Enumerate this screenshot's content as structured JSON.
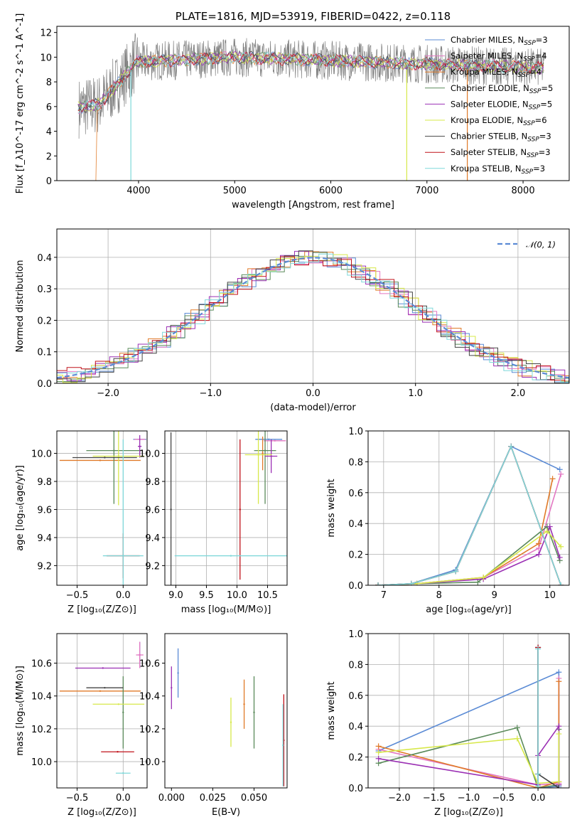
{
  "chart_data": [
    {
      "type": "line",
      "title": "PLATE=1816, MJD=53919, FIBERID=0422, z=0.118",
      "xlabel": "wavelength [Angstrom, rest frame]",
      "ylabel": "Flux [f_λ10^-17 erg cm^-2 s^-1 A^-1]",
      "xlim": [
        3150,
        8480
      ],
      "ylim": [
        0,
        12.5
      ],
      "xticks": [
        4000,
        5000,
        6000,
        7000,
        8000
      ],
      "yticks": [
        0,
        2,
        4,
        6,
        8,
        10,
        12
      ],
      "legend_position": "upper-right",
      "data_spectrum": {
        "x_range": [
          3380,
          8220
        ],
        "level": 10.0,
        "color": "#808080"
      },
      "series": [
        {
          "name": "Chabrier MILES, N_SSP=3",
          "color": "#5b8bd5"
        },
        {
          "name": "Salpeter MILES, N_SSP=4",
          "color": "#e377c2"
        },
        {
          "name": "Kroupa MILES, N_SSP=4",
          "color": "#e07a28"
        },
        {
          "name": "Chabrier ELODIE, N_SSP=5",
          "color": "#5a8a5a"
        },
        {
          "name": "Salpeter ELODIE, N_SSP=5",
          "color": "#9b30b4"
        },
        {
          "name": "Kroupa ELODIE, N_SSP=6",
          "color": "#d7e84a"
        },
        {
          "name": "Chabrier STELIB, N_SSP=3",
          "color": "#444444"
        },
        {
          "name": "Salpeter STELIB, N_SSP=3",
          "color": "#c0121a"
        },
        {
          "name": "Kroupa STELIB, N_SSP=3",
          "color": "#7fd8da"
        }
      ]
    },
    {
      "type": "histogram",
      "xlabel": "(data-model)/error",
      "ylabel": "Normed distribution",
      "xlim": [
        -2.5,
        2.5
      ],
      "ylim": [
        0,
        0.49
      ],
      "xticks": [
        -2,
        -1,
        0,
        1,
        2
      ],
      "yticks": [
        0.0,
        0.1,
        0.2,
        0.3,
        0.4
      ],
      "grid": true,
      "legend_position": "upper-right",
      "reference_curve": {
        "name": "𝒩(0, 1)",
        "color": "#5b8bd5"
      }
    },
    {
      "type": "errorbar",
      "xlabel": "Z [log10(Z/Z⊙)]",
      "ylabel": "age  [log10(age/yr)]",
      "xlim": [
        -0.72,
        0.26
      ],
      "ylim": [
        9.06,
        10.16
      ],
      "xticks": [
        -0.5,
        0.0
      ],
      "yticks": [
        9.2,
        9.4,
        9.6,
        9.8,
        10.0
      ],
      "grid": true,
      "points": [
        {
          "color": "#5b8bd5",
          "x": 0.18,
          "x_err": 0.07,
          "y": 10.1,
          "y_err": 0.0
        },
        {
          "color": "#e377c2",
          "x": 0.18,
          "x_err": 0.06,
          "y": 10.1,
          "y_err": 0.0
        },
        {
          "color": "#e07a28",
          "x": -0.25,
          "x_err": 0.44,
          "y": 9.95,
          "y_err": 0.0
        },
        {
          "color": "#5a8a5a",
          "x": -0.1,
          "x_err": 0.3,
          "y": 10.02,
          "y_err": 0.38
        },
        {
          "color": "#9b30b4",
          "x": 0.18,
          "x_err": 0.02,
          "y": 10.05,
          "y_err": 0.08
        },
        {
          "color": "#d7e84a",
          "x": -0.05,
          "x_err": 0.28,
          "y": 9.98,
          "y_err": 0.35
        },
        {
          "color": "#444444",
          "x": -0.2,
          "x_err": 0.35,
          "y": 9.97,
          "y_err": 0.0
        },
        {
          "color": "#c0121a",
          "x": 0.0,
          "x_err": 0.18,
          "y": 9.27,
          "y_err": 0.16
        },
        {
          "color": "#7fd8da",
          "x": 0.0,
          "x_err": 0.22,
          "y": 9.27,
          "y_err": 0.83
        }
      ]
    },
    {
      "type": "errorbar",
      "xlabel": "mass [log10(M/M⊙)]",
      "ylabel": "",
      "xlim": [
        8.82,
        10.82
      ],
      "ylim": [
        9.06,
        10.16
      ],
      "xticks": [
        9.0,
        9.5,
        10.0,
        10.5
      ],
      "yticks": [
        9.2,
        9.4,
        9.6,
        9.8,
        10.0
      ],
      "grid": true,
      "points": [
        {
          "color": "#5b8bd5",
          "x": 10.52,
          "x_err": 0.22,
          "y": 10.1,
          "y_err": 0.0
        },
        {
          "color": "#e377c2",
          "x": 10.62,
          "x_err": 0.18,
          "y": 10.09,
          "y_err": 0.0
        },
        {
          "color": "#e07a28",
          "x": 10.42,
          "x_err": 0.0,
          "y": 10.0,
          "y_err": 0.12
        },
        {
          "color": "#5a8a5a",
          "x": 10.46,
          "x_err": 0.18,
          "y": 10.02,
          "y_err": 0.38
        },
        {
          "color": "#9b30b4",
          "x": 10.56,
          "x_err": 0.1,
          "y": 9.98,
          "y_err": 0.12
        },
        {
          "color": "#d7e84a",
          "x": 10.35,
          "x_err": 0.22,
          "y": 9.99,
          "y_err": 0.35
        },
        {
          "color": "#444444",
          "x": 8.92,
          "x_err": 0.0,
          "y": 9.6,
          "y_err": 0.55
        },
        {
          "color": "#c0121a",
          "x": 10.05,
          "x_err": 0.0,
          "y": 9.6,
          "y_err": 0.5
        },
        {
          "color": "#7fd8da",
          "x": 9.9,
          "x_err": 0.92,
          "y": 9.27,
          "y_err": 0.0
        }
      ]
    },
    {
      "type": "line",
      "xlabel": "age  [log10(age/yr)]",
      "ylabel": "mass weight",
      "xlim": [
        6.72,
        10.35
      ],
      "ylim": [
        0,
        1
      ],
      "xticks": [
        7,
        8,
        9,
        10
      ],
      "yticks": [
        0.0,
        0.2,
        0.4,
        0.6,
        0.8,
        1.0
      ],
      "grid": true,
      "series": [
        {
          "color": "#5b8bd5",
          "x": [
            6.9,
            7.5,
            8.3,
            9.3,
            10.18
          ],
          "y": [
            0.0,
            0.01,
            0.1,
            0.9,
            0.75
          ]
        },
        {
          "color": "#e377c2",
          "x": [
            6.9,
            7.6,
            8.8,
            9.8,
            10.2
          ],
          "y": [
            0.0,
            0.01,
            0.05,
            0.24,
            0.72
          ]
        },
        {
          "color": "#e07a28",
          "x": [
            6.9,
            7.6,
            8.8,
            9.8,
            10.05
          ],
          "y": [
            0.0,
            0.01,
            0.05,
            0.27,
            0.69
          ]
        },
        {
          "color": "#5a8a5a",
          "x": [
            6.9,
            7.6,
            8.7,
            9.95,
            10.18
          ],
          "y": [
            0.0,
            0.01,
            0.02,
            0.38,
            0.16
          ]
        },
        {
          "color": "#9b30b4",
          "x": [
            6.9,
            7.6,
            8.8,
            9.8,
            10.0,
            10.18
          ],
          "y": [
            0.0,
            0.01,
            0.04,
            0.2,
            0.38,
            0.18
          ]
        },
        {
          "color": "#d7e84a",
          "x": [
            6.9,
            7.6,
            8.8,
            9.95,
            10.2
          ],
          "y": [
            0.0,
            0.01,
            0.05,
            0.35,
            0.25
          ]
        },
        {
          "color": "#444444",
          "x": [
            6.9,
            7.5,
            8.3,
            9.3,
            10.2
          ],
          "y": [
            0.0,
            0.01,
            0.09,
            0.9,
            0.0
          ]
        },
        {
          "color": "#c0121a",
          "x": [
            6.9,
            7.5,
            8.3,
            9.3,
            10.2
          ],
          "y": [
            0.0,
            0.01,
            0.09,
            0.9,
            0.0
          ]
        },
        {
          "color": "#7fd8da",
          "x": [
            6.9,
            7.5,
            8.3,
            9.3,
            10.2
          ],
          "y": [
            0.0,
            0.01,
            0.09,
            0.9,
            0.0
          ]
        }
      ]
    },
    {
      "type": "errorbar",
      "xlabel": "Z [log10(Z/Z⊙)]",
      "ylabel": "mass [log10(M/M⊙)]",
      "xlim": [
        -0.72,
        0.26
      ],
      "ylim": [
        9.84,
        10.78
      ],
      "xticks": [
        -0.5,
        0.0
      ],
      "yticks": [
        10.0,
        10.2,
        10.4,
        10.6
      ],
      "grid": true,
      "points": [
        {
          "color": "#5b8bd5",
          "x": 0.18,
          "x_err": 0.0,
          "y": 10.65,
          "y_err": 0.08
        },
        {
          "color": "#e377c2",
          "x": 0.18,
          "x_err": 0.04,
          "y": 10.65,
          "y_err": 0.08
        },
        {
          "color": "#e07a28",
          "x": -0.25,
          "x_err": 0.44,
          "y": 10.43,
          "y_err": 0.0
        },
        {
          "color": "#5a8a5a",
          "x": 0.0,
          "x_err": 0.0,
          "y": 10.3,
          "y_err": 0.22
        },
        {
          "color": "#9b30b4",
          "x": -0.22,
          "x_err": 0.3,
          "y": 10.57,
          "y_err": 0.0
        },
        {
          "color": "#d7e84a",
          "x": -0.05,
          "x_err": 0.28,
          "y": 10.35,
          "y_err": 0.0
        },
        {
          "color": "#444444",
          "x": -0.2,
          "x_err": 0.2,
          "y": 10.45,
          "y_err": 0.0
        },
        {
          "color": "#c0121a",
          "x": -0.06,
          "x_err": 0.18,
          "y": 10.06,
          "y_err": 0.0
        },
        {
          "color": "#7fd8da",
          "x": 0.0,
          "x_err": 0.08,
          "y": 9.93,
          "y_err": 0.0
        }
      ]
    },
    {
      "type": "errorbar",
      "xlabel": "E(B-V)",
      "ylabel": "",
      "xlim": [
        -0.004,
        0.07
      ],
      "ylim": [
        9.84,
        10.78
      ],
      "xticks": [
        0.0,
        0.025,
        0.05
      ],
      "yticks": [
        10.0,
        10.2,
        10.4,
        10.6
      ],
      "grid": false,
      "points": [
        {
          "color": "#9b30b4",
          "x": 0.0,
          "y": 10.45,
          "y_err": 0.13
        },
        {
          "color": "#5b8bd5",
          "x": 0.004,
          "y": 10.54,
          "y_err": 0.15
        },
        {
          "color": "#d7e84a",
          "x": 0.036,
          "y": 10.24,
          "y_err": 0.15
        },
        {
          "color": "#e07a28",
          "x": 0.044,
          "y": 10.35,
          "y_err": 0.15
        },
        {
          "color": "#5a8a5a",
          "x": 0.05,
          "y": 10.3,
          "y_err": 0.22
        },
        {
          "color": "#c0121a",
          "x": 0.068,
          "y": 10.13,
          "y_err": 0.28
        },
        {
          "color": "#7fd8da",
          "x": 0.0675,
          "y": 10.1,
          "y_err": 0.25
        }
      ]
    },
    {
      "type": "line",
      "xlabel": "Z [log10(Z/Z⊙)]",
      "ylabel": "mass weight",
      "xlim": [
        -2.45,
        0.45
      ],
      "ylim": [
        0,
        1
      ],
      "xticks": [
        -2.0,
        -1.5,
        -1.0,
        -0.5,
        0.0
      ],
      "yticks": [
        0.0,
        0.2,
        0.4,
        0.6,
        0.8,
        1.0
      ],
      "grid": true,
      "series": [
        {
          "color": "#5b8bd5",
          "x": [
            -2.3,
            0.3,
            0.3,
            0.0,
            0.0
          ],
          "y": [
            0.24,
            0.75,
            0.01,
            0.0,
            0.91
          ]
        },
        {
          "color": "#e377c2",
          "x": [
            -2.3,
            0.0,
            0.3,
            0.3
          ],
          "y": [
            0.25,
            0.02,
            0.03,
            0.71
          ]
        },
        {
          "color": "#e07a28",
          "x": [
            -2.3,
            0.0,
            0.3,
            0.3
          ],
          "y": [
            0.27,
            0.0,
            0.04,
            0.69
          ]
        },
        {
          "color": "#5a8a5a",
          "x": [
            -2.3,
            -0.3,
            0.0,
            0.3,
            0.3
          ],
          "y": [
            0.16,
            0.39,
            0.0,
            0.02,
            0.38
          ]
        },
        {
          "color": "#9b30b4",
          "x": [
            -2.3,
            0.0,
            0.0,
            0.3,
            0.3
          ],
          "y": [
            0.19,
            0.02,
            0.21,
            0.4,
            0.02
          ]
        },
        {
          "color": "#d7e84a",
          "x": [
            -2.3,
            -0.3,
            0.0,
            0.3,
            0.3
          ],
          "y": [
            0.23,
            0.32,
            0.03,
            0.04,
            0.35
          ]
        },
        {
          "color": "#444444",
          "x": [
            0.0,
            0.0,
            0.3
          ],
          "y": [
            0.91,
            0.09,
            0.0
          ]
        },
        {
          "color": "#c0121a",
          "x": [
            0.0,
            0.0
          ],
          "y": [
            0.91,
            0.09
          ]
        },
        {
          "color": "#7fd8da",
          "x": [
            0.0,
            0.0,
            0.0
          ],
          "y": [
            0.9,
            0.09,
            0.01
          ]
        }
      ]
    }
  ]
}
